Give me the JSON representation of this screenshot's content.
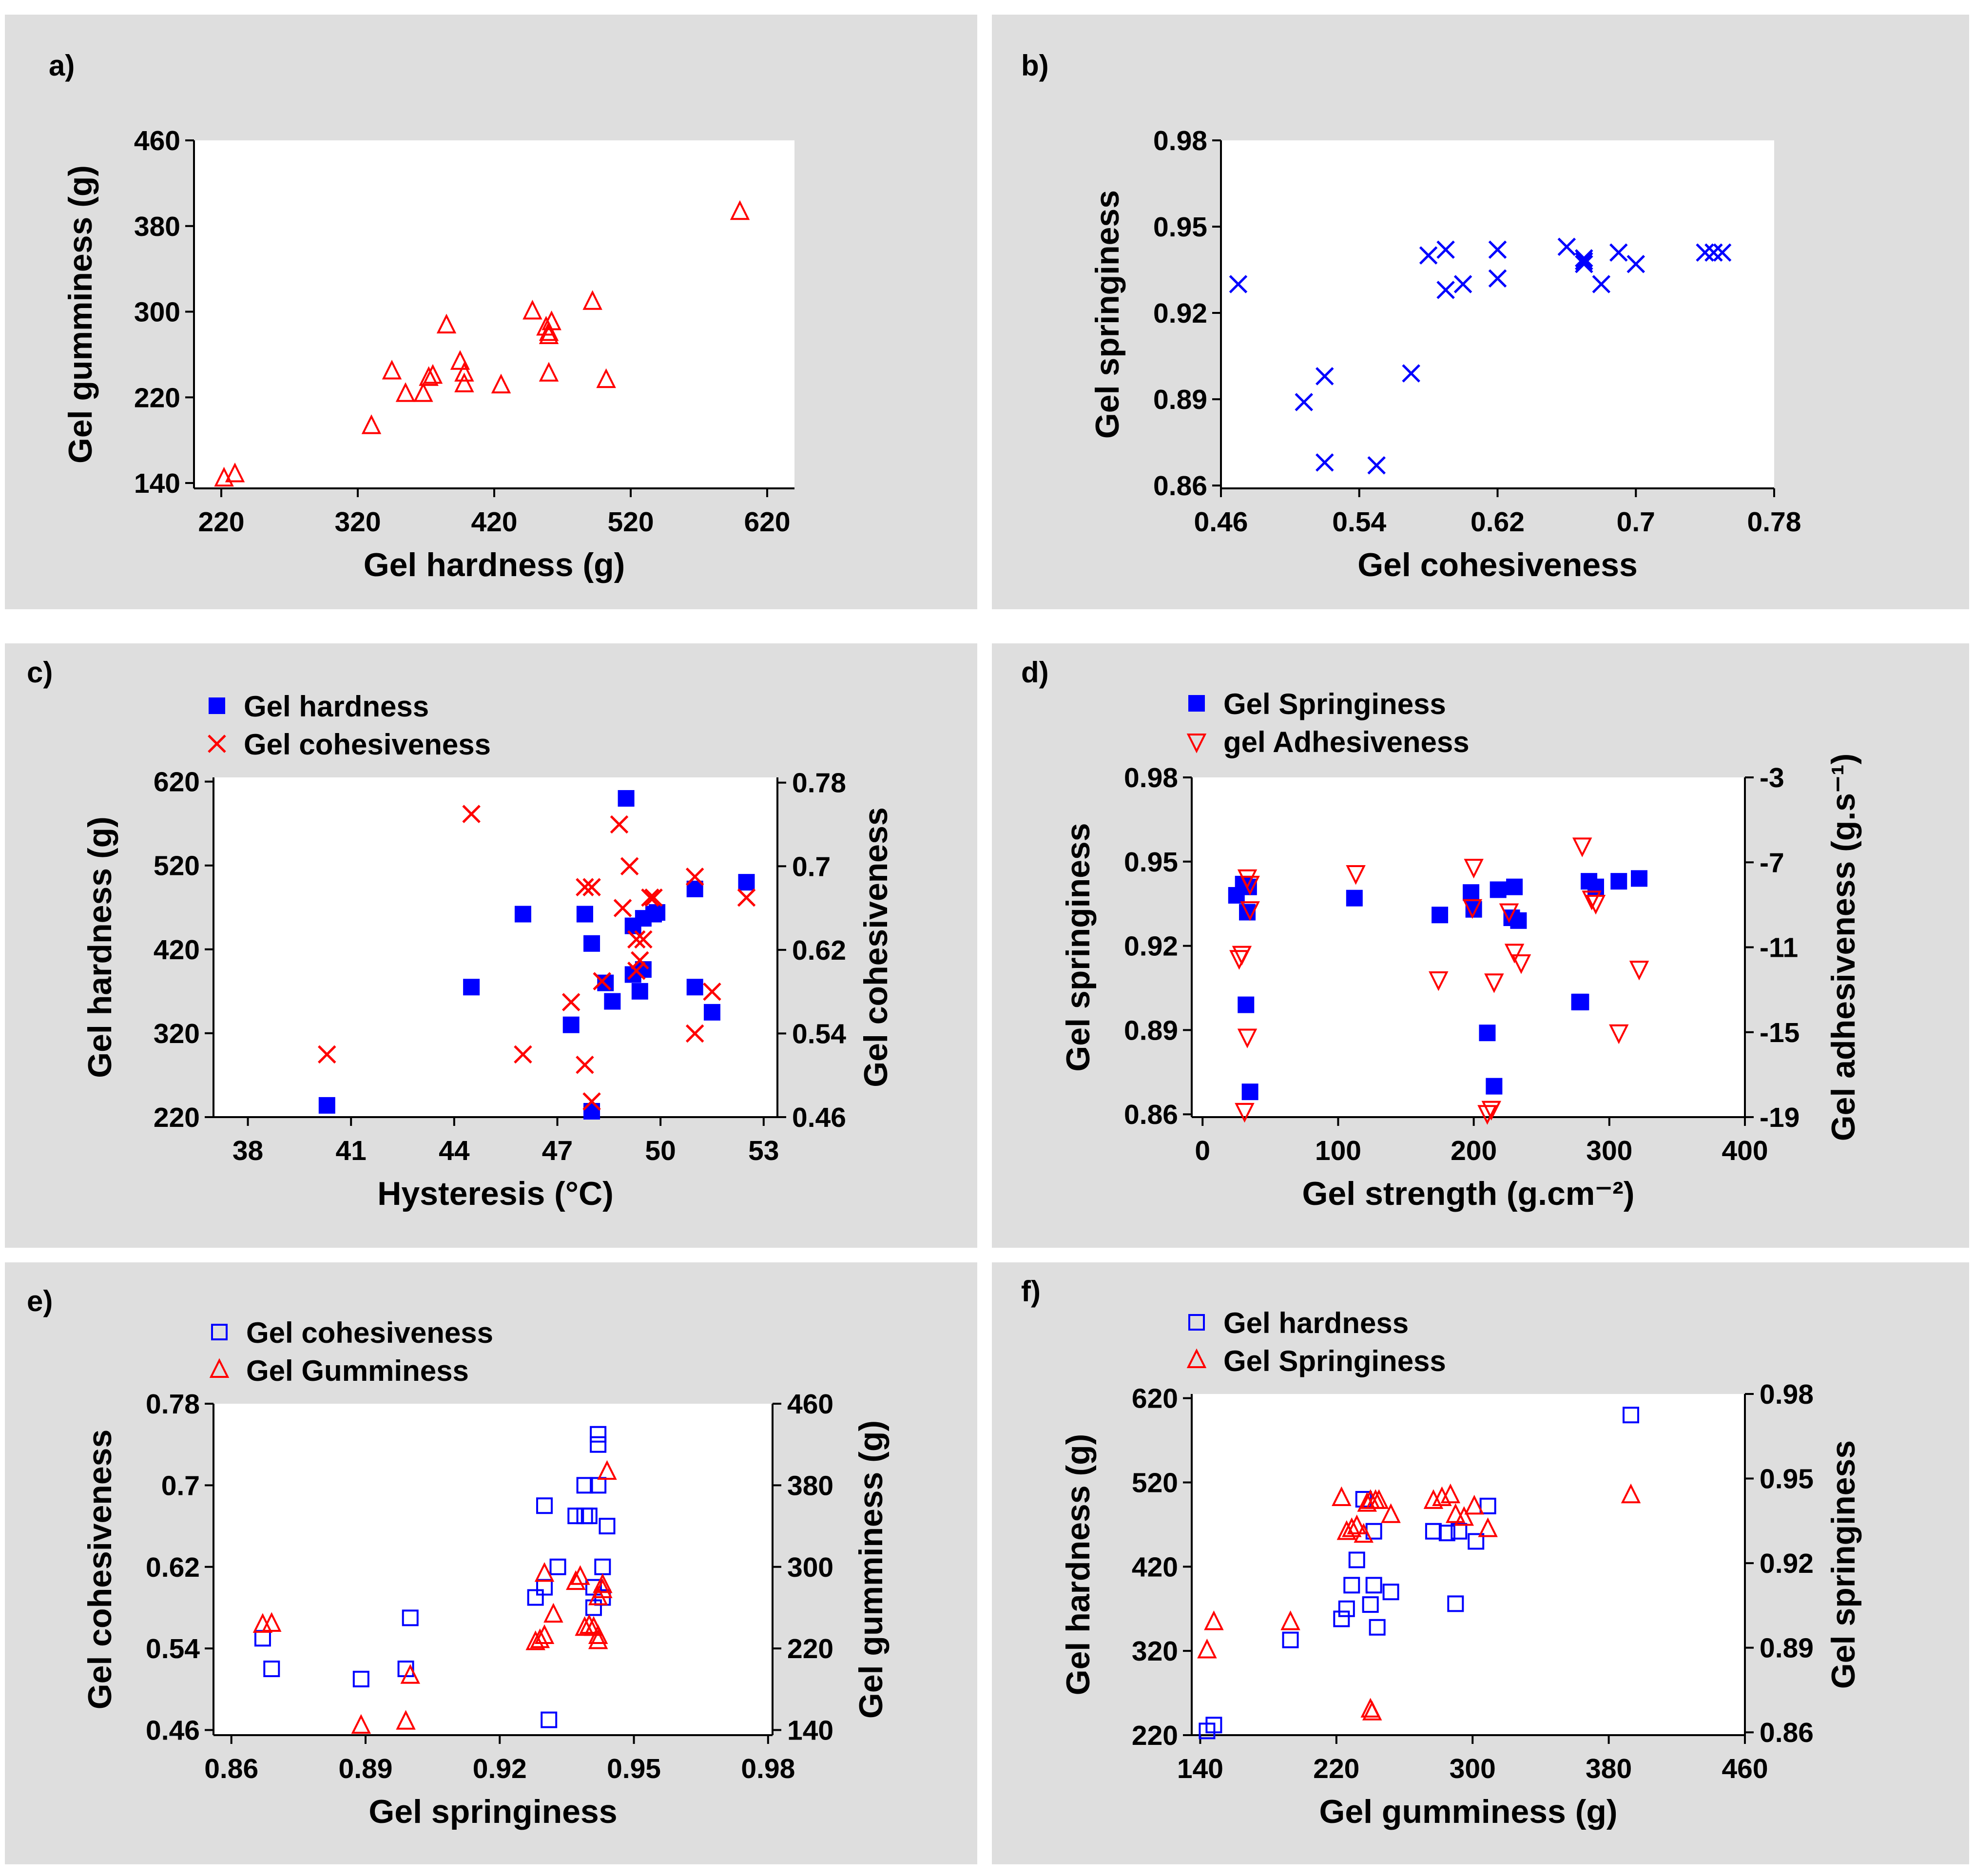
{
  "colors": {
    "blue": "#0000ff",
    "red": "#ff0000",
    "panel_bg": "#dedede"
  },
  "chart_data": [
    {
      "id": "a",
      "letter": "a)",
      "type": "scatter",
      "xlabel": "Gel hardness (g)",
      "ylabel": "Gel gumminess (g)",
      "xlim": [
        200,
        640
      ],
      "ylim": [
        135,
        460
      ],
      "xticks": [
        220,
        320,
        420,
        520,
        620
      ],
      "xtick_labels": [
        "220",
        "320",
        "420",
        "520",
        "620"
      ],
      "yticks": [
        140,
        220,
        300,
        380,
        460
      ],
      "ytick_labels": [
        "140",
        "220",
        "300",
        "380",
        "460"
      ],
      "series": [
        {
          "name": "",
          "marker": "triangle-open",
          "color": "#ff0000",
          "axis": "left",
          "x": [
            222,
            230,
            330,
            345,
            355,
            368,
            372,
            375,
            385,
            395,
            398,
            398,
            425,
            448,
            458,
            460,
            460,
            462,
            460,
            492,
            502,
            600
          ],
          "y": [
            144,
            148,
            193,
            244,
            223,
            223,
            238,
            240,
            287,
            253,
            232,
            242,
            231,
            300,
            285,
            280,
            277,
            290,
            242,
            309,
            236,
            393
          ]
        }
      ]
    },
    {
      "id": "b",
      "letter": "b)",
      "type": "scatter",
      "xlabel": "Gel cohesiveness",
      "ylabel": "Gel springiness",
      "xlim": [
        0.46,
        0.78
      ],
      "ylim": [
        0.859,
        0.98
      ],
      "xticks": [
        0.46,
        0.54,
        0.62,
        0.7,
        0.78
      ],
      "xtick_labels": [
        "0.46",
        "0.54",
        "0.62",
        "0.7",
        "0.78"
      ],
      "yticks": [
        0.86,
        0.89,
        0.92,
        0.95,
        0.98
      ],
      "ytick_labels": [
        "0.86",
        "0.89",
        "0.92",
        "0.95",
        "0.98"
      ],
      "series": [
        {
          "name": "",
          "marker": "x",
          "color": "#0000ff",
          "axis": "left",
          "x": [
            0.47,
            0.508,
            0.52,
            0.52,
            0.55,
            0.57,
            0.58,
            0.59,
            0.59,
            0.6,
            0.62,
            0.62,
            0.66,
            0.67,
            0.67,
            0.67,
            0.68,
            0.69,
            0.7,
            0.74,
            0.745,
            0.75
          ],
          "y": [
            0.93,
            0.889,
            0.898,
            0.868,
            0.867,
            0.899,
            0.94,
            0.942,
            0.928,
            0.93,
            0.942,
            0.932,
            0.943,
            0.937,
            0.938,
            0.939,
            0.93,
            0.941,
            0.937,
            0.941,
            0.941,
            0.941
          ]
        }
      ]
    },
    {
      "id": "c",
      "letter": "c)",
      "type": "scatter",
      "xlabel": "Hysteresis (°C)",
      "ylabel": "Gel hardness (g)",
      "ylabel_right": "Gel cohesiveness",
      "xlim": [
        37,
        53.4
      ],
      "ylim": [
        220,
        625
      ],
      "ylim_right": [
        0.46,
        0.785
      ],
      "xticks": [
        38,
        41,
        44,
        47,
        50,
        53
      ],
      "xtick_labels": [
        "38",
        "41",
        "44",
        "47",
        "50",
        "53"
      ],
      "yticks": [
        220,
        320,
        420,
        520,
        620
      ],
      "ytick_labels": [
        "220",
        "320",
        "420",
        "520",
        "620"
      ],
      "yticks_right": [
        0.46,
        0.54,
        0.62,
        0.7,
        0.78
      ],
      "ytick_labels_right": [
        "0.46",
        "0.54",
        "0.62",
        "0.7",
        "0.78"
      ],
      "legend": [
        "Gel hardness",
        "Gel cohesiveness"
      ],
      "series": [
        {
          "name": "Gel hardness",
          "marker": "square-filled",
          "color": "#0000ff",
          "axis": "left",
          "x": [
            40.3,
            44.5,
            46,
            47.4,
            47.8,
            47.8,
            48,
            48,
            48.4,
            48.6,
            49,
            49.2,
            49.2,
            49.4,
            49.5,
            49.5,
            49.8,
            49.9,
            51,
            51,
            51.5,
            52.5
          ],
          "y": [
            234,
            375,
            462,
            330,
            462,
            462,
            427,
            227,
            380,
            358,
            600,
            448,
            390,
            370,
            396,
            457,
            462,
            464,
            375,
            492,
            345,
            500
          ]
        },
        {
          "name": "Gel cohesiveness",
          "marker": "x",
          "color": "#ff0000",
          "axis": "right",
          "x": [
            40.3,
            44.5,
            46,
            47.4,
            47.8,
            47.8,
            48,
            48,
            48.3,
            48.8,
            48.9,
            49.1,
            49.3,
            49.3,
            49.4,
            49.5,
            49.7,
            49.8,
            51,
            51,
            51.5,
            52.5
          ],
          "y": [
            0.52,
            0.75,
            0.52,
            0.57,
            0.51,
            0.68,
            0.475,
            0.68,
            0.59,
            0.74,
            0.66,
            0.7,
            0.63,
            0.6,
            0.61,
            0.63,
            0.67,
            0.67,
            0.54,
            0.69,
            0.58,
            0.67
          ]
        }
      ]
    },
    {
      "id": "d",
      "letter": "d)",
      "type": "scatter",
      "xlabel": "Gel strength (g.cm⁻²)",
      "ylabel": "Gel springiness",
      "ylabel_right": "Gel adhesiveness (g.s⁻¹)",
      "xlim": [
        -8,
        400
      ],
      "ylim": [
        0.859,
        0.98
      ],
      "ylim_right": [
        -19,
        -3
      ],
      "xticks": [
        0,
        100,
        200,
        300,
        400
      ],
      "xtick_labels": [
        "0",
        "100",
        "200",
        "300",
        "400"
      ],
      "yticks": [
        0.86,
        0.89,
        0.92,
        0.95,
        0.98
      ],
      "ytick_labels": [
        "0.86",
        "0.89",
        "0.92",
        "0.95",
        "0.98"
      ],
      "yticks_right": [
        -19,
        -15,
        -11,
        -7,
        -3
      ],
      "ytick_labels_right": [
        "-19",
        "-15",
        "-11",
        "-7",
        "-3"
      ],
      "legend": [
        "Gel Springiness",
        "gel Adhesiveness"
      ],
      "series": [
        {
          "name": "Gel Springiness",
          "marker": "square-filled",
          "color": "#0000ff",
          "axis": "left",
          "x": [
            25,
            30,
            32,
            33,
            34,
            35,
            112,
            175,
            198,
            200,
            218,
            228,
            230,
            233,
            210,
            215,
            278,
            279,
            285,
            290,
            307,
            322
          ],
          "y": [
            0.938,
            0.942,
            0.899,
            0.932,
            0.941,
            0.868,
            0.937,
            0.931,
            0.939,
            0.933,
            0.94,
            0.93,
            0.941,
            0.929,
            0.889,
            0.87,
            0.9,
            0.9,
            0.943,
            0.941,
            0.943,
            0.944
          ]
        },
        {
          "name": "gel Adhesiveness",
          "marker": "triangle-down-open",
          "color": "#ff0000",
          "axis": "right",
          "x": [
            27,
            29,
            31,
            33,
            35,
            35,
            33,
            113,
            174,
            199,
            200,
            226,
            215,
            230,
            235,
            210,
            213,
            280,
            287,
            290,
            307,
            322
          ],
          "y": [
            -11.5,
            -11.3,
            -18.7,
            -15.2,
            -8.0,
            -9.2,
            -7.7,
            -7.5,
            -12.5,
            -9.1,
            -7.2,
            -9.3,
            -12.6,
            -11.2,
            -11.7,
            -18.8,
            -18.6,
            -6.2,
            -8.7,
            -8.9,
            -15.0,
            -12.0
          ]
        }
      ]
    },
    {
      "id": "e",
      "letter": "e)",
      "type": "scatter",
      "xlabel": "Gel springiness",
      "ylabel": "Gel cohesiveness",
      "ylabel_right": "Gel gumminess (g)",
      "xlim": [
        0.856,
        0.981
      ],
      "ylim": [
        0.455,
        0.78
      ],
      "ylim_right": [
        135,
        460
      ],
      "xticks": [
        0.86,
        0.89,
        0.92,
        0.95,
        0.98
      ],
      "xtick_labels": [
        "0.86",
        "0.89",
        "0.92",
        "0.95",
        "0.98"
      ],
      "yticks": [
        0.46,
        0.54,
        0.62,
        0.7,
        0.78
      ],
      "ytick_labels": [
        "0.46",
        "0.54",
        "0.62",
        "0.7",
        "0.78"
      ],
      "yticks_right": [
        140,
        220,
        300,
        380,
        460
      ],
      "ytick_labels_right": [
        "140",
        "220",
        "300",
        "380",
        "460"
      ],
      "legend": [
        "Gel cohesiveness",
        "Gel Gumminess"
      ],
      "series": [
        {
          "name": "Gel cohesiveness",
          "marker": "square-open",
          "color": "#0000ff",
          "axis": "left",
          "x": [
            0.867,
            0.869,
            0.889,
            0.899,
            0.9,
            0.928,
            0.93,
            0.93,
            0.931,
            0.933,
            0.937,
            0.939,
            0.939,
            0.94,
            0.941,
            0.941,
            0.942,
            0.942,
            0.942,
            0.943,
            0.943,
            0.944
          ],
          "y": [
            0.55,
            0.52,
            0.51,
            0.52,
            0.57,
            0.59,
            0.6,
            0.68,
            0.47,
            0.62,
            0.67,
            0.7,
            0.67,
            0.67,
            0.6,
            0.58,
            0.74,
            0.75,
            0.7,
            0.59,
            0.62,
            0.66
          ]
        },
        {
          "name": "Gel Gumminess",
          "marker": "triangle-open",
          "color": "#ff0000",
          "axis": "right",
          "x": [
            0.867,
            0.869,
            0.889,
            0.899,
            0.9,
            0.928,
            0.929,
            0.93,
            0.93,
            0.932,
            0.937,
            0.938,
            0.939,
            0.94,
            0.941,
            0.941,
            0.942,
            0.942,
            0.942,
            0.943,
            0.943,
            0.944
          ],
          "y": [
            243,
            244,
            144,
            148,
            193,
            226,
            228,
            232,
            293,
            253,
            285,
            290,
            240,
            242,
            240,
            240,
            232,
            270,
            227,
            277,
            282,
            393
          ]
        }
      ]
    },
    {
      "id": "f",
      "letter": "f)",
      "type": "scatter",
      "xlabel": "Gel gumminess (g)",
      "ylabel": "Gel hardness (g)",
      "ylabel_right": "Gel springiness",
      "xlim": [
        135,
        460
      ],
      "ylim": [
        220,
        625
      ],
      "ylim_right": [
        0.859,
        0.98
      ],
      "xticks": [
        140,
        220,
        300,
        380,
        460
      ],
      "xtick_labels": [
        "140",
        "220",
        "300",
        "380",
        "460"
      ],
      "yticks": [
        220,
        320,
        420,
        520,
        620
      ],
      "ytick_labels": [
        "220",
        "320",
        "420",
        "520",
        "620"
      ],
      "yticks_right": [
        0.86,
        0.89,
        0.92,
        0.95,
        0.98
      ],
      "ytick_labels_right": [
        "0.86",
        "0.89",
        "0.92",
        "0.95",
        "0.98"
      ],
      "legend": [
        "Gel hardness",
        "Gel Springiness"
      ],
      "series": [
        {
          "name": "Gel hardness",
          "marker": "square-open",
          "color": "#0000ff",
          "axis": "left",
          "x": [
            144,
            148,
            193,
            223,
            226,
            229,
            232,
            236,
            240,
            242,
            242,
            244,
            252,
            277,
            285,
            290,
            292,
            302,
            309,
            393
          ],
          "y": [
            225,
            232,
            333,
            358,
            370,
            398,
            428,
            500,
            375,
            462,
            398,
            348,
            390,
            462,
            460,
            376,
            462,
            450,
            492,
            600
          ]
        },
        {
          "name": "Gel Springiness",
          "marker": "triangle-open",
          "color": "#ff0000",
          "axis": "right",
          "x": [
            144,
            148,
            193,
            223,
            226,
            229,
            232,
            236,
            238,
            240,
            240,
            241,
            243,
            245,
            252,
            277,
            282,
            287,
            290,
            295,
            301,
            309,
            393
          ],
          "y": [
            0.889,
            0.899,
            0.899,
            0.943,
            0.931,
            0.932,
            0.933,
            0.93,
            0.941,
            0.942,
            0.868,
            0.867,
            0.942,
            0.942,
            0.937,
            0.942,
            0.943,
            0.944,
            0.937,
            0.936,
            0.94,
            0.932,
            0.944
          ]
        }
      ]
    }
  ]
}
